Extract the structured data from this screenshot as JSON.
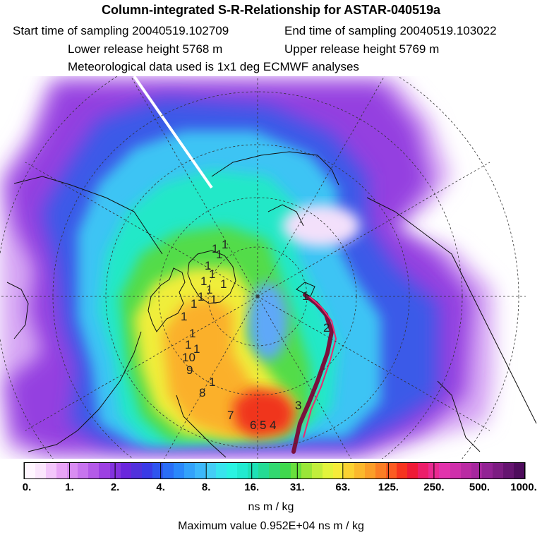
{
  "header": {
    "title": "Column-integrated S-R-Relationship for ASTAR-040519a",
    "start_time": "Start time of sampling 20040519.102709",
    "end_time": "End time of sampling 20040519.103022",
    "lower_height": "Lower release height 5768 m",
    "upper_height": "Upper release height 5769 m",
    "met_data": "Meteorological data used is 1x1 deg ECMWF analyses"
  },
  "map": {
    "projection": "polar-stereographic-north",
    "day_labels": [
      "10",
      "9",
      "8",
      "7",
      "6",
      "5",
      "4",
      "3",
      "2",
      "1"
    ],
    "scattered_labels": [
      "1",
      "1",
      "1",
      "1",
      "1",
      "1",
      "1",
      "1",
      "1",
      "1",
      "1",
      "1",
      "1",
      "1",
      "1",
      "1"
    ]
  },
  "colorbar": {
    "tick_labels": [
      "0.",
      "1.",
      "2.",
      "4.",
      "8.",
      "16.",
      "31.",
      "63.",
      "125.",
      "250.",
      "500.",
      "1000."
    ],
    "colors": [
      "#fff6ff",
      "#fbe6fd",
      "#f3c6fb",
      "#e8a4f6",
      "#d98df2",
      "#c774ee",
      "#b45ae8",
      "#9d40e2",
      "#8432df",
      "#6a26dc",
      "#5131dc",
      "#3a3ae6",
      "#2e54ee",
      "#2a6ef6",
      "#2a88fb",
      "#32a2fb",
      "#3cb8fb",
      "#44cdf6",
      "#38e4ee",
      "#2af3e2",
      "#22ead0",
      "#1ee0b6",
      "#24db94",
      "#32d870",
      "#3fd84d",
      "#68df3c",
      "#9ae638",
      "#c2ee3c",
      "#e3f43c",
      "#f6ec3a",
      "#fbd231",
      "#fbb82c",
      "#fb9e28",
      "#fb7e24",
      "#fb5c22",
      "#f6341f",
      "#ef1a36",
      "#ec1e6a",
      "#ea2a92",
      "#e233ac",
      "#cf2fab",
      "#ba2aa3",
      "#a6279e",
      "#922294",
      "#7c1c82",
      "#651470",
      "#4e0c5c"
    ],
    "units": "ns m / kg",
    "max_value": "Maximum value  0.952E+04 ns m / kg"
  },
  "chart_data": {
    "type": "heatmap",
    "title": "Column-integrated S-R-Relationship for ASTAR-040519a",
    "scale_ticks": [
      0,
      1,
      2,
      4,
      8,
      16,
      31,
      63,
      125,
      250,
      500,
      1000
    ],
    "units": "ns m / kg",
    "maximum": 9520
  }
}
